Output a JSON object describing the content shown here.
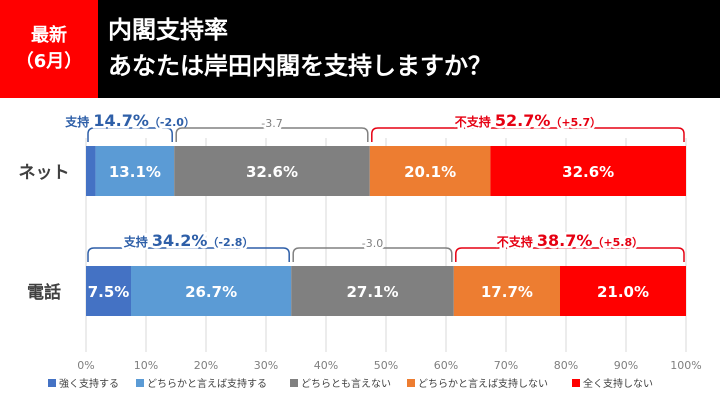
{
  "header": {
    "badge_line1": "最新",
    "badge_line2": "（6月）",
    "title": "内閣支持率",
    "subtitle": "あなたは岸田内閣を支持しますか？"
  },
  "colors": {
    "header_bg": "#000000",
    "badge_bg": "#ff0000",
    "support_label": "#2e5fa8",
    "nonsupport_label": "#e60012",
    "bracket_neutral": "#808080"
  },
  "chart_data": {
    "type": "bar",
    "orientation": "horizontal",
    "stacked": true,
    "percent": true,
    "categories": [
      "ネット",
      "電話"
    ],
    "series": [
      {
        "name": "強く支持する",
        "color": "#4472c4",
        "values": [
          1.6,
          7.5
        ],
        "labels": [
          "",
          "7.5%"
        ]
      },
      {
        "name": "どちらかと言えば支持する",
        "color": "#5b9bd5",
        "values": [
          13.1,
          26.7
        ],
        "labels": [
          "13.1%",
          "26.7%"
        ]
      },
      {
        "name": "どちらとも言えない",
        "color": "#808080",
        "values": [
          32.6,
          27.1
        ],
        "labels": [
          "32.6%",
          "27.1%"
        ]
      },
      {
        "name": "どちらかと言えば支持しない",
        "color": "#ed7d31",
        "values": [
          20.1,
          17.7
        ],
        "labels": [
          "20.1%",
          "17.7%"
        ]
      },
      {
        "name": "全く支持しない",
        "color": "#ff0000",
        "values": [
          32.6,
          21.0
        ],
        "labels": [
          "32.6%",
          "21.0%"
        ]
      }
    ],
    "xlim": [
      0,
      100
    ],
    "xticks": [
      "0%",
      "10%",
      "20%",
      "30%",
      "40%",
      "50%",
      "60%",
      "70%",
      "80%",
      "90%",
      "100%"
    ],
    "grid": true,
    "legend_position": "bottom",
    "annotations": [
      {
        "row": 0,
        "segments": [
          0,
          1
        ],
        "kind": "support",
        "label": "支持",
        "value": "14.7%",
        "change": "（-2.0）"
      },
      {
        "row": 0,
        "segments": [
          2,
          2
        ],
        "kind": "neutral",
        "label": "",
        "value": "",
        "change": "-3.7"
      },
      {
        "row": 0,
        "segments": [
          3,
          4
        ],
        "kind": "nonsupport",
        "label": "不支持",
        "value": "52.7%",
        "change": "（+5.7）"
      },
      {
        "row": 1,
        "segments": [
          0,
          1
        ],
        "kind": "support",
        "label": "支持",
        "value": "34.2%",
        "change": "（-2.8）"
      },
      {
        "row": 1,
        "segments": [
          2,
          2
        ],
        "kind": "neutral",
        "label": "",
        "value": "",
        "change": "-3.0"
      },
      {
        "row": 1,
        "segments": [
          3,
          4
        ],
        "kind": "nonsupport",
        "label": "不支持",
        "value": "38.7%",
        "change": "（+5.8）"
      }
    ]
  }
}
